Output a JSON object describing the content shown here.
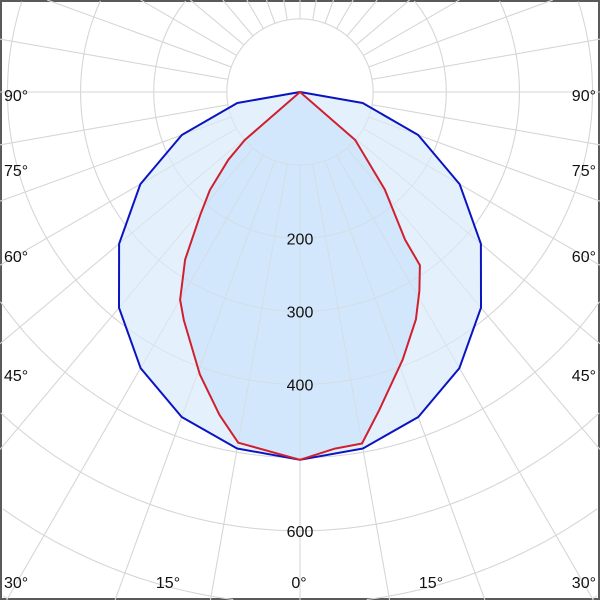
{
  "chart_data": {
    "type": "polar-line",
    "radial_ticks": [
      100,
      200,
      300,
      400,
      500,
      600,
      700,
      800
    ],
    "radial_tick_labels": [
      "200",
      "300",
      "400",
      "600"
    ],
    "angle_labels": {
      "left": [
        "90°",
        "75°",
        "60°",
        "45°"
      ],
      "right": [
        "90°",
        "75°",
        "60°",
        "45°"
      ],
      "bottom": [
        "30°",
        "15°",
        "0°",
        "15°",
        "30°"
      ]
    },
    "angle_zero_direction": "down",
    "grid": true,
    "series": [
      {
        "color": "#0a14c0",
        "fill": "#e4f1fd",
        "points": [
          [
            -90,
            0
          ],
          [
            -80,
            87
          ],
          [
            -70,
            172
          ],
          [
            -60,
            252
          ],
          [
            -50,
            323
          ],
          [
            -40,
            385
          ],
          [
            -30,
            436
          ],
          [
            -20,
            473
          ],
          [
            -10,
            495
          ],
          [
            0,
            503
          ],
          [
            10,
            495
          ],
          [
            20,
            473
          ],
          [
            30,
            436
          ],
          [
            40,
            385
          ],
          [
            50,
            323
          ],
          [
            60,
            252
          ],
          [
            70,
            172
          ],
          [
            80,
            87
          ],
          [
            90,
            0
          ]
        ]
      },
      {
        "color": "#d0202e",
        "fill": "#d2e7fb",
        "points": [
          [
            -90,
            0
          ],
          [
            -49,
            100
          ],
          [
            -46.6,
            135
          ],
          [
            -42.6,
            182
          ],
          [
            -39,
            217
          ],
          [
            -34.4,
            278
          ],
          [
            -30,
            328
          ],
          [
            -27,
            350
          ],
          [
            -19.5,
            410
          ],
          [
            -14,
            455
          ],
          [
            -10,
            487
          ],
          [
            0,
            503
          ],
          [
            5.6,
            490
          ],
          [
            10,
            488
          ],
          [
            14,
            448
          ],
          [
            21,
            392
          ],
          [
            27,
            349
          ],
          [
            31,
            317
          ],
          [
            34.7,
            288
          ],
          [
            35.4,
            248
          ],
          [
            41,
            177
          ],
          [
            49,
            100
          ],
          [
            90,
            0
          ]
        ]
      }
    ]
  }
}
